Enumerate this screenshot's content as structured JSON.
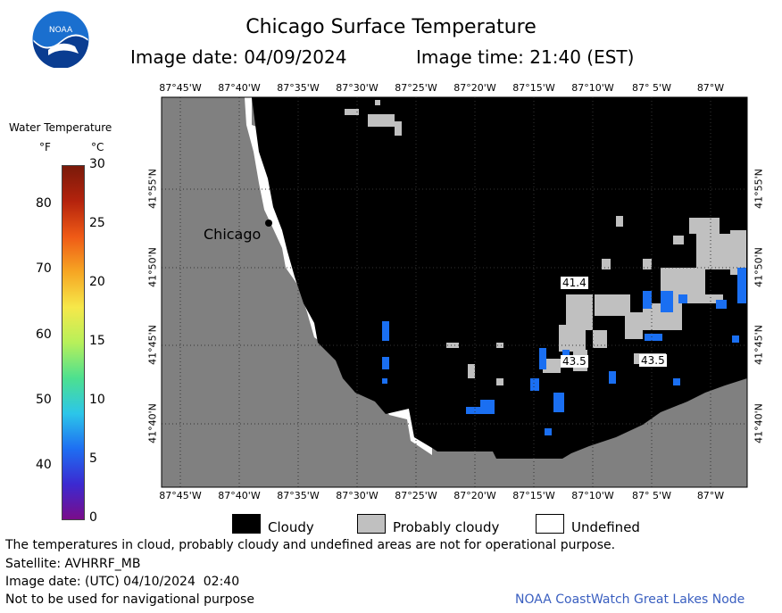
{
  "header": {
    "title": "Chicago Surface Temperature",
    "image_date": "Image date: 04/09/2024",
    "image_time": "Image time: 21:40 (EST)"
  },
  "logo": {
    "text": "NOAA",
    "colors": {
      "top": "#1a6fcf",
      "bottom": "#0a3d91"
    }
  },
  "legend": {
    "title": "Water Temperature",
    "unit_f": "°F",
    "unit_c": "°C",
    "f_ticks": [
      "80",
      "70",
      "60",
      "50",
      "40"
    ],
    "c_ticks": [
      "30",
      "25",
      "20",
      "15",
      "10",
      "5",
      "0"
    ],
    "gradient": [
      "#7a0c8a",
      "#3b2ad1",
      "#1e6ff2",
      "#2cc6e9",
      "#4de08f",
      "#b7f05a",
      "#f6e84a",
      "#f6a623",
      "#ef5a16",
      "#b4230d",
      "#7a1a0a"
    ]
  },
  "map": {
    "lon_labels": [
      "87°45'W",
      "87°40'W",
      "87°35'W",
      "87°30'W",
      "87°25'W",
      "87°20'W",
      "87°15'W",
      "87°10'W",
      "87° 5'W",
      "87°W"
    ],
    "lat_labels": [
      "41°55'N",
      "41°50'N",
      "41°45'N",
      "41°40'N"
    ],
    "city": "Chicago",
    "temp_labels": [
      "41.4",
      "43.5",
      "43.5"
    ],
    "colors": {
      "land": "#808080",
      "cloudy": "#000000",
      "probably_cloudy": "#c0c0c0",
      "undefined": "#ffffff",
      "cold_water": "#1a6ff2"
    }
  },
  "key": {
    "cloudy": "Cloudy",
    "probably_cloudy": "Probably cloudy",
    "undefined": "Undefined"
  },
  "footer": {
    "disclaimer": "The temperatures in cloud, probably cloudy and undefined areas are not for operational purpose.",
    "satellite": "Satellite: AVHRRF_MB",
    "utc_date": "Image date: (UTC) 04/10/2024  02:40",
    "nav_warning": "Not to be used for navigational purpose",
    "credit": "NOAA CoastWatch Great Lakes Node"
  }
}
